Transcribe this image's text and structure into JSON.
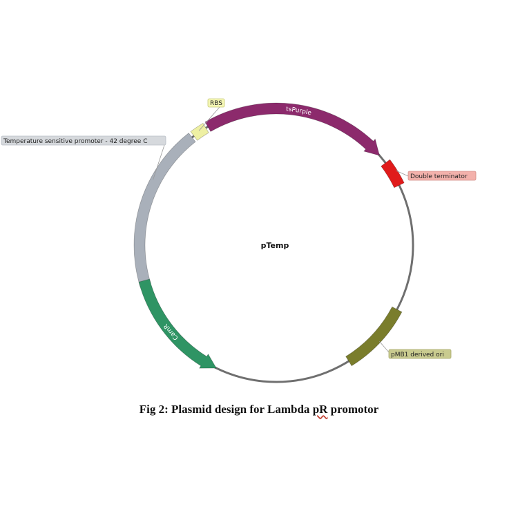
{
  "plasmid": {
    "name": "pTemp",
    "features": [
      {
        "id": "promoter",
        "label": "Temperature sensitive promoter - 42 degree C",
        "arc_label": "",
        "color": "#a9b0ba",
        "label_bg": "#d6d9dd",
        "label_border": "#b9bec5",
        "start_deg": -107,
        "end_deg": -38,
        "arrow": "none"
      },
      {
        "id": "rbs",
        "label": "RBS",
        "arc_label": "",
        "color": "#eef0a3",
        "label_bg": "#f5f7b5",
        "label_border": "#c8ca78",
        "start_deg": -37,
        "end_deg": -31,
        "arrow": "none"
      },
      {
        "id": "tspurple",
        "label": "",
        "arc_label": "tsPurple",
        "color": "#8c2a6c",
        "label_bg": "",
        "label_border": "",
        "start_deg": -30,
        "end_deg": 49,
        "arrow": "clockwise"
      },
      {
        "id": "terminator",
        "label": "Double terminator",
        "arc_label": "",
        "color": "#e01b1b",
        "label_bg": "#f3b1ab",
        "label_border": "#d48f88",
        "start_deg": 53,
        "end_deg": 64,
        "arrow": "none"
      },
      {
        "id": "ori",
        "label": "pMB1 derived ori",
        "arc_label": "",
        "color": "#7a7d2c",
        "label_bg": "#c9cb8f",
        "label_border": "#a7a96b",
        "start_deg": 118,
        "end_deg": 148,
        "arrow": "none"
      },
      {
        "id": "camr",
        "label": "",
        "arc_label": "CamR",
        "color": "#2f9464",
        "label_bg": "",
        "label_border": "",
        "start_deg": 206,
        "end_deg": 255,
        "arrow": "counterclockwise"
      }
    ]
  },
  "caption": {
    "prefix": "Fig 2:  Plasmid design for Lambda ",
    "squiggle": "pR",
    "suffix": " promotor"
  }
}
